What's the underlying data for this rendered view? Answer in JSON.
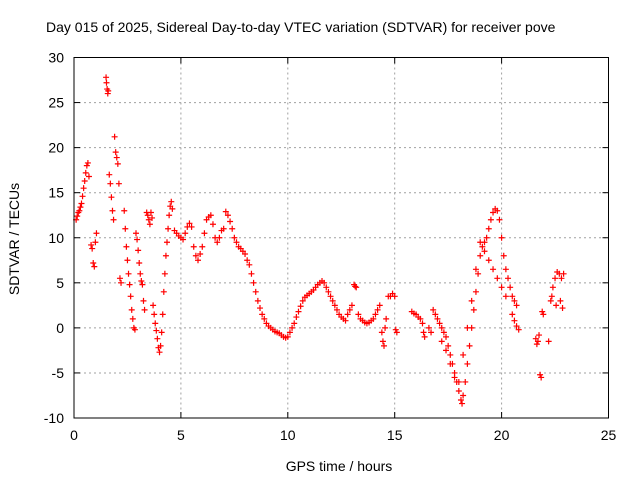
{
  "chart_data": {
    "type": "scatter",
    "title": "Day 015 of 2025, Sidereal Day-to-day VTEC variation (SDTVAR) for receiver pove",
    "xlabel": "GPS time / hours",
    "ylabel": "SDTVAR / TECUs",
    "xlim": [
      0,
      25
    ],
    "ylim": [
      -10,
      30
    ],
    "xticks": [
      0,
      5,
      10,
      15,
      20,
      25
    ],
    "yticks": [
      -10,
      -5,
      0,
      5,
      10,
      15,
      20,
      25,
      30
    ],
    "grid": true,
    "marker": "+",
    "color": "#ff0000",
    "series": [
      {
        "name": "SDTVAR",
        "points": [
          [
            0.1,
            12.0
          ],
          [
            0.15,
            12.4
          ],
          [
            0.2,
            12.8
          ],
          [
            0.25,
            13.0
          ],
          [
            0.3,
            13.4
          ],
          [
            0.35,
            13.8
          ],
          [
            0.4,
            14.6
          ],
          [
            0.45,
            15.5
          ],
          [
            0.5,
            16.3
          ],
          [
            0.55,
            17.2
          ],
          [
            0.6,
            18.0
          ],
          [
            0.65,
            18.3
          ],
          [
            0.7,
            16.8
          ],
          [
            0.8,
            9.2
          ],
          [
            0.85,
            8.8
          ],
          [
            0.9,
            7.2
          ],
          [
            0.95,
            6.8
          ],
          [
            1.0,
            9.5
          ],
          [
            1.05,
            10.5
          ],
          [
            1.5,
            27.8
          ],
          [
            1.52,
            27.2
          ],
          [
            1.55,
            26.5
          ],
          [
            1.58,
            26.0
          ],
          [
            1.6,
            26.3
          ],
          [
            1.65,
            17.0
          ],
          [
            1.7,
            16.0
          ],
          [
            1.75,
            14.5
          ],
          [
            1.8,
            13.0
          ],
          [
            1.85,
            12.0
          ],
          [
            1.9,
            21.2
          ],
          [
            1.95,
            19.5
          ],
          [
            2.0,
            18.9
          ],
          [
            2.05,
            18.2
          ],
          [
            2.1,
            16.0
          ],
          [
            2.15,
            5.5
          ],
          [
            2.2,
            5.0
          ],
          [
            2.35,
            13.0
          ],
          [
            2.4,
            11.0
          ],
          [
            2.45,
            9.0
          ],
          [
            2.5,
            7.5
          ],
          [
            2.55,
            6.0
          ],
          [
            2.6,
            4.8
          ],
          [
            2.65,
            3.5
          ],
          [
            2.7,
            2.0
          ],
          [
            2.75,
            1.0
          ],
          [
            2.8,
            0.0
          ],
          [
            2.85,
            -0.2
          ],
          [
            2.9,
            10.5
          ],
          [
            2.95,
            9.8
          ],
          [
            3.0,
            8.6
          ],
          [
            3.05,
            7.2
          ],
          [
            3.1,
            6.0
          ],
          [
            3.15,
            5.2
          ],
          [
            3.2,
            4.8
          ],
          [
            3.25,
            3.0
          ],
          [
            3.3,
            2.0
          ],
          [
            3.4,
            12.8
          ],
          [
            3.45,
            12.5
          ],
          [
            3.5,
            12.0
          ],
          [
            3.55,
            11.5
          ],
          [
            3.6,
            12.8
          ],
          [
            3.65,
            12.2
          ],
          [
            3.7,
            2.5
          ],
          [
            3.75,
            1.5
          ],
          [
            3.8,
            0.5
          ],
          [
            3.85,
            -0.3
          ],
          [
            3.9,
            -1.2
          ],
          [
            3.95,
            -2.2
          ],
          [
            4.0,
            -2.7
          ],
          [
            4.05,
            -2.0
          ],
          [
            4.1,
            -0.5
          ],
          [
            4.15,
            1.5
          ],
          [
            4.2,
            4.0
          ],
          [
            4.25,
            6.0
          ],
          [
            4.3,
            8.0
          ],
          [
            4.35,
            9.5
          ],
          [
            4.4,
            11.0
          ],
          [
            4.45,
            12.5
          ],
          [
            4.5,
            13.5
          ],
          [
            4.55,
            14.0
          ],
          [
            4.6,
            13.2
          ],
          [
            4.7,
            10.8
          ],
          [
            4.8,
            10.5
          ],
          [
            4.9,
            10.2
          ],
          [
            5.0,
            10.0
          ],
          [
            5.1,
            9.8
          ],
          [
            5.2,
            10.5
          ],
          [
            5.3,
            11.2
          ],
          [
            5.4,
            11.6
          ],
          [
            5.5,
            11.2
          ],
          [
            5.6,
            9.0
          ],
          [
            5.7,
            8.0
          ],
          [
            5.8,
            7.5
          ],
          [
            5.9,
            8.2
          ],
          [
            6.0,
            9.0
          ],
          [
            6.1,
            10.5
          ],
          [
            6.2,
            12.0
          ],
          [
            6.3,
            12.3
          ],
          [
            6.4,
            12.5
          ],
          [
            6.5,
            11.5
          ],
          [
            6.6,
            10.0
          ],
          [
            6.7,
            9.5
          ],
          [
            6.8,
            10.0
          ],
          [
            6.9,
            10.8
          ],
          [
            7.0,
            11.0
          ],
          [
            7.1,
            12.9
          ],
          [
            7.2,
            12.5
          ],
          [
            7.3,
            11.8
          ],
          [
            7.4,
            11.0
          ],
          [
            7.5,
            10.0
          ],
          [
            7.6,
            9.5
          ],
          [
            7.7,
            9.0
          ],
          [
            7.8,
            8.8
          ],
          [
            7.9,
            8.5
          ],
          [
            8.0,
            8.2
          ],
          [
            8.1,
            7.5
          ],
          [
            8.2,
            7.0
          ],
          [
            8.3,
            6.0
          ],
          [
            8.4,
            5.0
          ],
          [
            8.5,
            4.0
          ],
          [
            8.6,
            3.0
          ],
          [
            8.7,
            2.2
          ],
          [
            8.8,
            1.5
          ],
          [
            8.9,
            1.0
          ],
          [
            9.0,
            0.5
          ],
          [
            9.1,
            0.2
          ],
          [
            9.2,
            0.0
          ],
          [
            9.3,
            -0.2
          ],
          [
            9.4,
            -0.4
          ],
          [
            9.5,
            -0.5
          ],
          [
            9.6,
            -0.6
          ],
          [
            9.7,
            -0.8
          ],
          [
            9.8,
            -1.0
          ],
          [
            9.9,
            -1.1
          ],
          [
            10.0,
            -1.0
          ],
          [
            10.1,
            -0.5
          ],
          [
            10.2,
            0.0
          ],
          [
            10.3,
            0.5
          ],
          [
            10.4,
            1.2
          ],
          [
            10.5,
            1.8
          ],
          [
            10.6,
            2.4
          ],
          [
            10.7,
            3.0
          ],
          [
            10.8,
            3.4
          ],
          [
            10.9,
            3.6
          ],
          [
            11.0,
            3.8
          ],
          [
            11.1,
            4.0
          ],
          [
            11.2,
            4.2
          ],
          [
            11.3,
            4.5
          ],
          [
            11.4,
            4.8
          ],
          [
            11.5,
            5.0
          ],
          [
            11.6,
            5.2
          ],
          [
            11.7,
            5.0
          ],
          [
            11.8,
            4.5
          ],
          [
            11.9,
            4.0
          ],
          [
            12.0,
            3.5
          ],
          [
            12.1,
            3.0
          ],
          [
            12.2,
            2.5
          ],
          [
            12.3,
            2.0
          ],
          [
            12.4,
            1.5
          ],
          [
            12.5,
            1.2
          ],
          [
            12.6,
            1.0
          ],
          [
            12.7,
            0.8
          ],
          [
            12.8,
            1.5
          ],
          [
            12.9,
            2.0
          ],
          [
            13.0,
            2.5
          ],
          [
            13.1,
            4.8
          ],
          [
            13.15,
            4.6
          ],
          [
            13.2,
            4.5
          ],
          [
            13.3,
            1.5
          ],
          [
            13.4,
            1.0
          ],
          [
            13.5,
            0.8
          ],
          [
            13.6,
            0.6
          ],
          [
            13.7,
            0.5
          ],
          [
            13.8,
            0.6
          ],
          [
            13.9,
            0.8
          ],
          [
            14.0,
            1.0
          ],
          [
            14.1,
            1.5
          ],
          [
            14.2,
            2.0
          ],
          [
            14.3,
            2.5
          ],
          [
            14.4,
            -0.5
          ],
          [
            14.45,
            -1.5
          ],
          [
            14.5,
            -2.0
          ],
          [
            14.55,
            0.0
          ],
          [
            14.6,
            1.0
          ],
          [
            14.7,
            3.5
          ],
          [
            14.8,
            3.5
          ],
          [
            14.9,
            3.8
          ],
          [
            15.0,
            3.5
          ],
          [
            15.05,
            -0.2
          ],
          [
            15.1,
            -0.5
          ],
          [
            15.8,
            1.8
          ],
          [
            15.9,
            1.6
          ],
          [
            16.0,
            1.5
          ],
          [
            16.1,
            1.2
          ],
          [
            16.2,
            1.0
          ],
          [
            16.3,
            0.5
          ],
          [
            16.35,
            -0.5
          ],
          [
            16.4,
            -1.0
          ],
          [
            16.6,
            0.0
          ],
          [
            16.7,
            -0.5
          ],
          [
            16.8,
            2.0
          ],
          [
            16.9,
            1.5
          ],
          [
            17.0,
            1.0
          ],
          [
            17.1,
            0.5
          ],
          [
            17.2,
            0.0
          ],
          [
            17.3,
            -0.5
          ],
          [
            17.4,
            -1.0
          ],
          [
            17.5,
            -2.0
          ],
          [
            17.6,
            -3.0
          ],
          [
            17.7,
            -4.0
          ],
          [
            17.8,
            -5.0
          ],
          [
            17.9,
            -6.0
          ],
          [
            18.0,
            -7.0
          ],
          [
            18.1,
            -8.0
          ],
          [
            18.15,
            -8.4
          ],
          [
            18.2,
            -7.5
          ],
          [
            18.3,
            -6.0
          ],
          [
            18.4,
            -4.0
          ],
          [
            18.5,
            -2.0
          ],
          [
            18.6,
            0.0
          ],
          [
            18.7,
            2.0
          ],
          [
            18.8,
            4.0
          ],
          [
            18.9,
            6.0
          ],
          [
            19.0,
            8.0
          ],
          [
            19.1,
            9.0
          ],
          [
            19.2,
            9.5
          ],
          [
            19.3,
            10.0
          ],
          [
            19.4,
            11.0
          ],
          [
            19.5,
            12.0
          ],
          [
            19.6,
            12.8
          ],
          [
            19.7,
            13.2
          ],
          [
            19.8,
            13.0
          ],
          [
            19.9,
            12.0
          ],
          [
            20.0,
            10.0
          ],
          [
            20.1,
            8.0
          ],
          [
            20.2,
            6.5
          ],
          [
            20.3,
            5.5
          ],
          [
            20.4,
            4.5
          ],
          [
            20.5,
            3.5
          ],
          [
            20.6,
            3.0
          ],
          [
            20.7,
            2.5
          ],
          [
            17.2,
            -1.5
          ],
          [
            17.4,
            -2.5
          ],
          [
            17.6,
            -4.0
          ],
          [
            17.8,
            -5.5
          ],
          [
            18.0,
            -6.0
          ],
          [
            18.2,
            -3.0
          ],
          [
            18.4,
            0.0
          ],
          [
            18.6,
            3.0
          ],
          [
            18.8,
            6.5
          ],
          [
            19.0,
            9.5
          ],
          [
            19.2,
            8.5
          ],
          [
            19.4,
            7.5
          ],
          [
            19.6,
            6.5
          ],
          [
            19.8,
            5.5
          ],
          [
            20.0,
            4.5
          ],
          [
            20.2,
            3.5
          ],
          [
            20.5,
            1.5
          ],
          [
            20.6,
            0.8
          ],
          [
            20.7,
            0.2
          ],
          [
            20.8,
            -0.2
          ],
          [
            21.6,
            -1.2
          ],
          [
            21.65,
            -1.8
          ],
          [
            21.7,
            -1.5
          ],
          [
            21.75,
            -0.8
          ],
          [
            21.8,
            -5.2
          ],
          [
            21.85,
            -5.5
          ],
          [
            21.9,
            1.8
          ],
          [
            21.95,
            1.5
          ],
          [
            22.2,
            -1.5
          ],
          [
            22.3,
            3.0
          ],
          [
            22.4,
            4.5
          ],
          [
            22.5,
            5.5
          ],
          [
            22.6,
            6.2
          ],
          [
            22.7,
            6.0
          ],
          [
            22.8,
            5.5
          ],
          [
            22.9,
            6.0
          ],
          [
            22.35,
            3.5
          ],
          [
            22.55,
            2.5
          ],
          [
            22.75,
            3.0
          ],
          [
            22.85,
            2.2
          ]
        ]
      }
    ]
  }
}
